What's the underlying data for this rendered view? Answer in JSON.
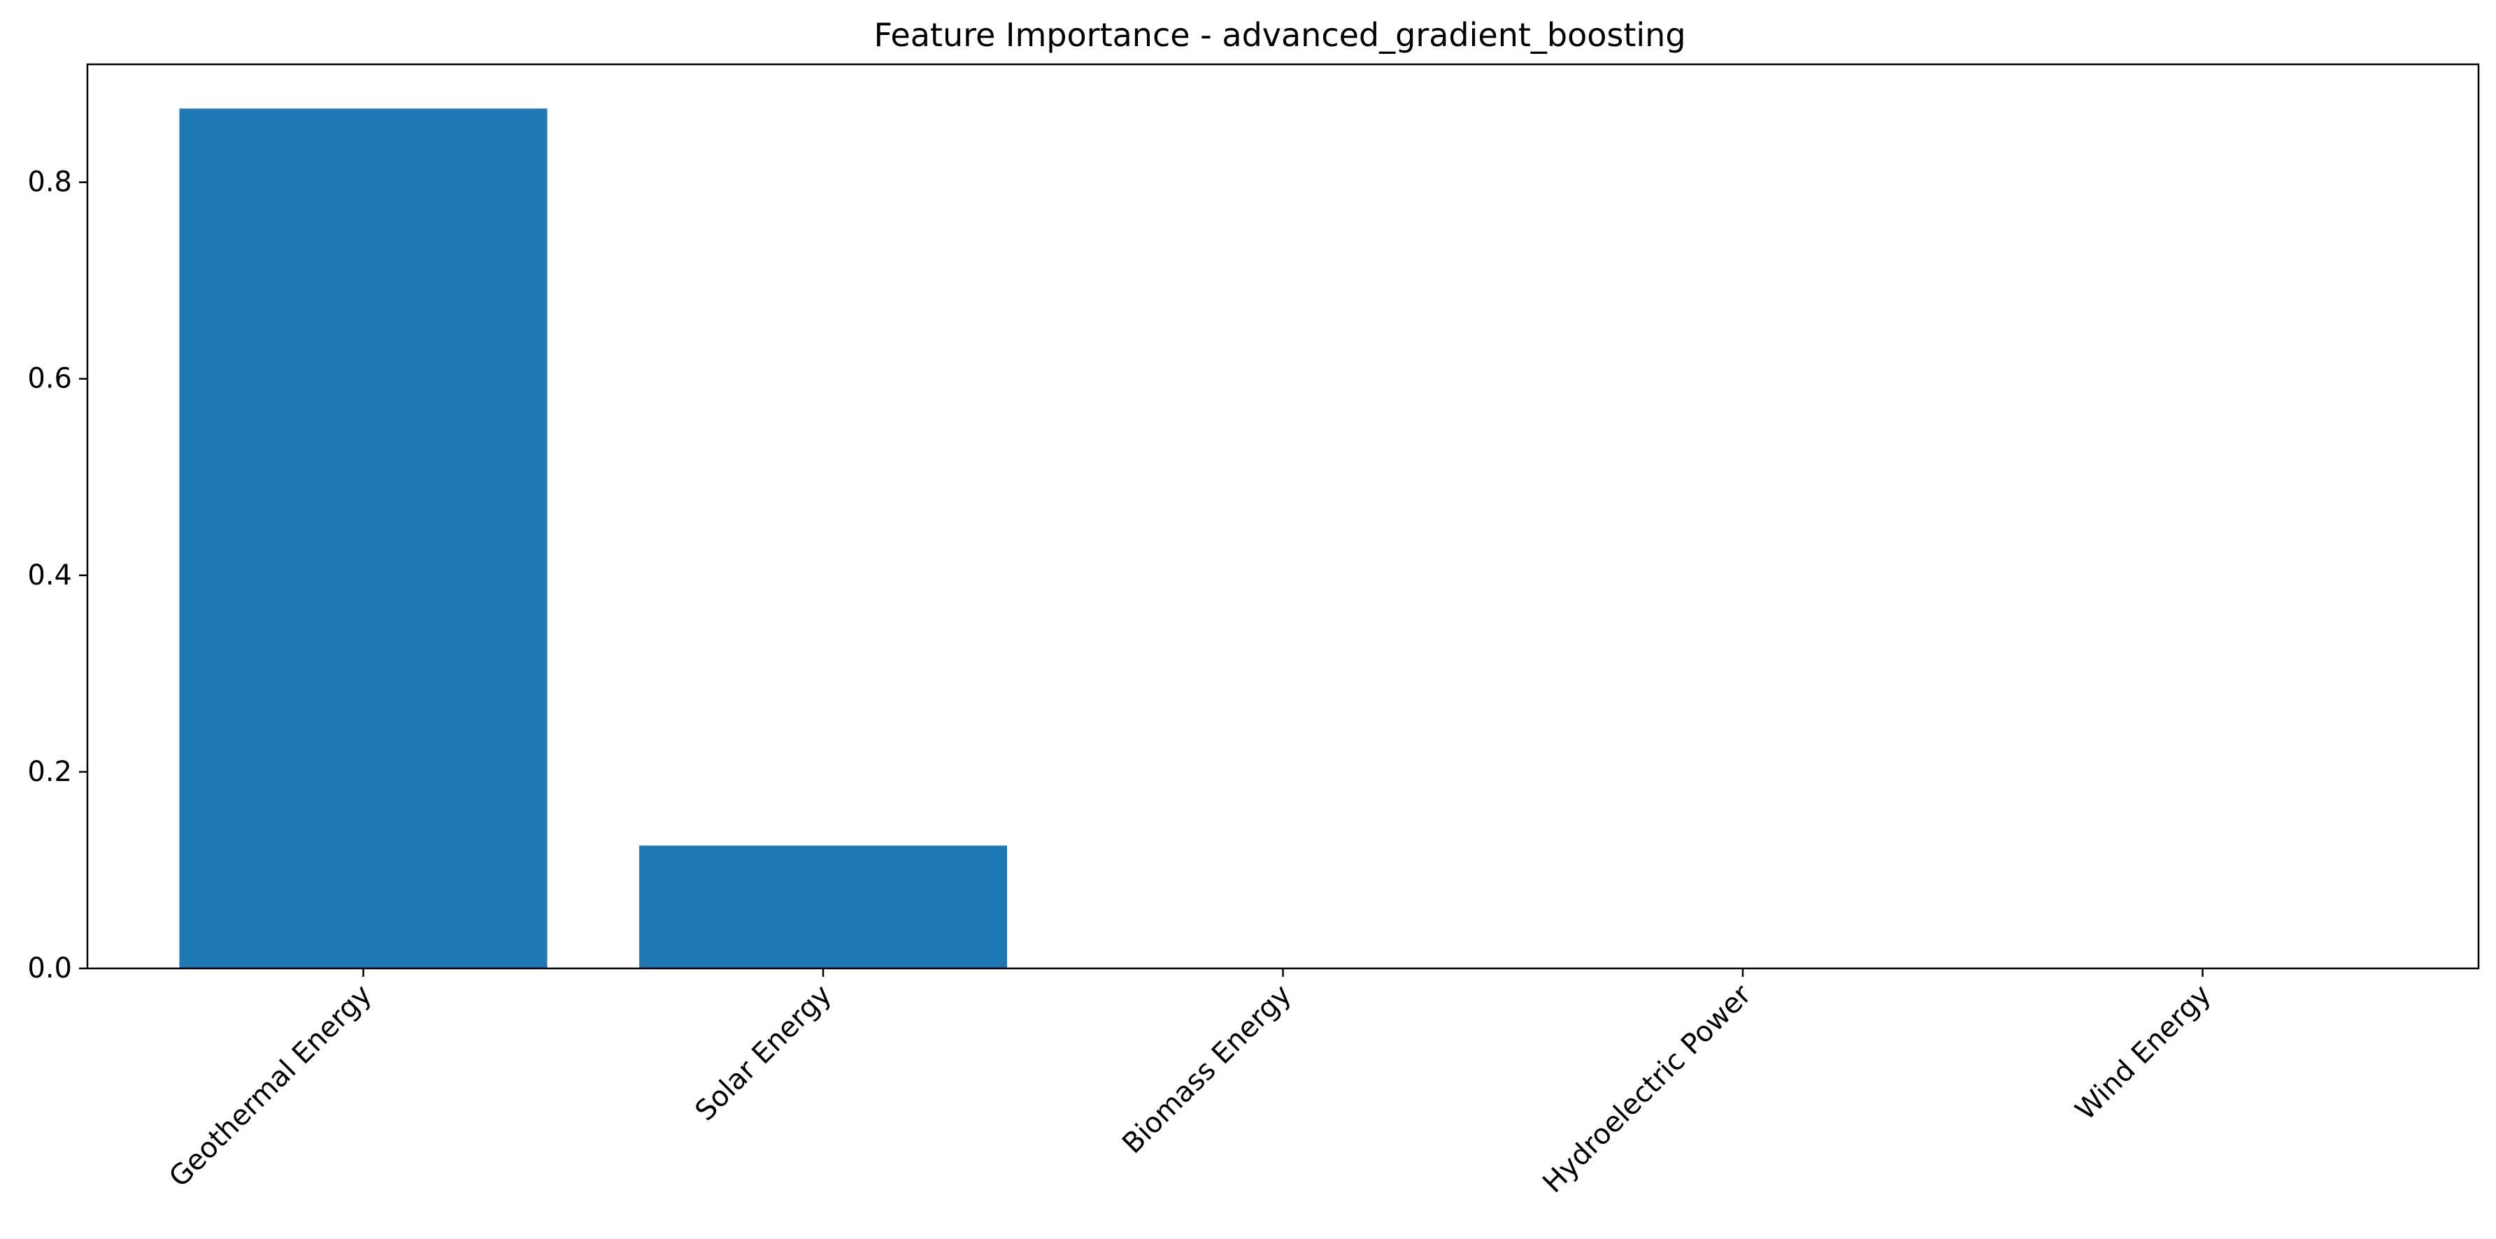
{
  "chart_data": {
    "type": "bar",
    "title": "Feature Importance - advanced_gradient_boosting",
    "xlabel": "",
    "ylabel": "",
    "categories": [
      "Geothermal Energy",
      "Solar Energy",
      "Biomass Energy",
      "Hydroelectric Power",
      "Wind Energy"
    ],
    "values": [
      0.875,
      0.125,
      0.0,
      0.0,
      0.0
    ],
    "ylim": [
      0,
      0.92
    ],
    "yticks": [
      "0.0",
      "0.2",
      "0.4",
      "0.6",
      "0.8"
    ],
    "grid": false,
    "legend": "none",
    "bar_color": "#1f77b4",
    "xtick_rotation_degrees": 45
  }
}
